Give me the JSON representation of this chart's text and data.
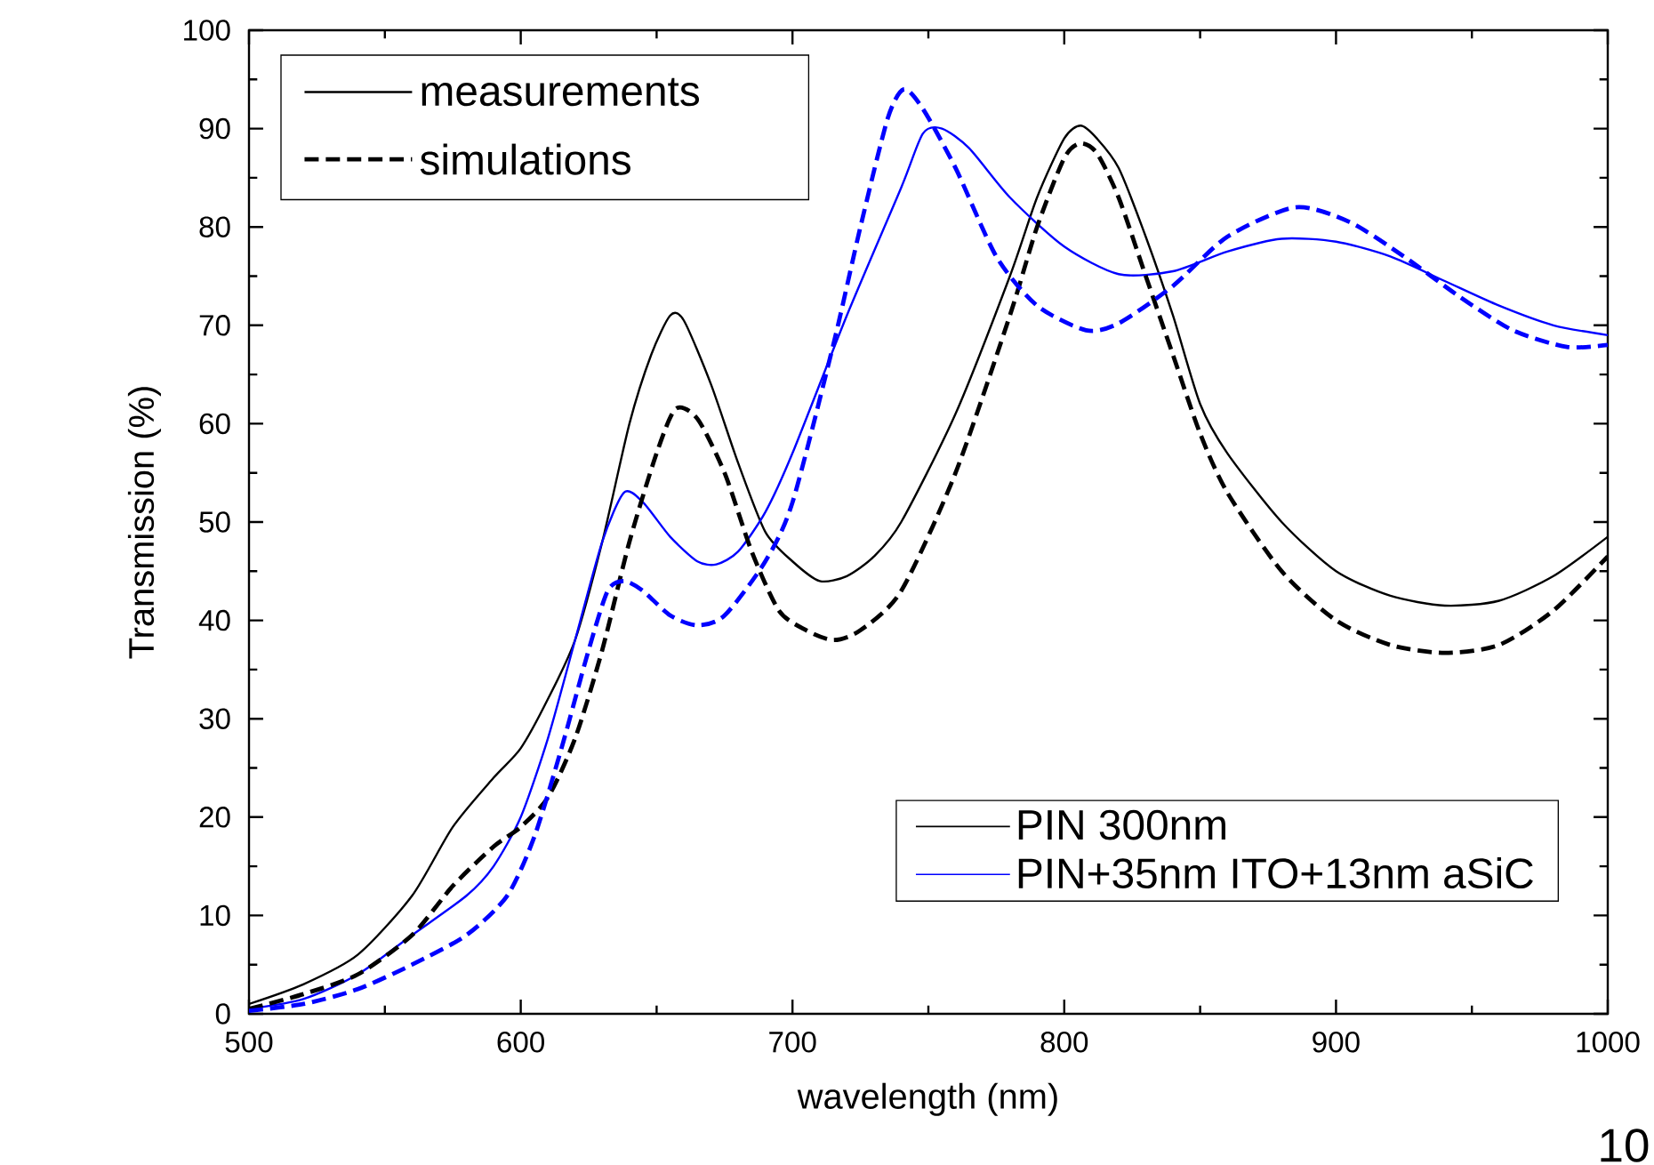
{
  "chart_data": {
    "type": "line",
    "xlabel": "wavelength (nm)",
    "ylabel": "Transmission (%)",
    "xlim": [
      500,
      1000
    ],
    "ylim": [
      0,
      100
    ],
    "xticks": [
      500,
      600,
      700,
      800,
      900,
      1000
    ],
    "yticks": [
      0,
      10,
      20,
      30,
      40,
      50,
      60,
      70,
      80,
      90,
      100
    ],
    "legend": "bottom right",
    "grid": false,
    "marker": "none",
    "annotations": [
      "measurements",
      "simulations",
      "10"
    ],
    "series": [
      {
        "name": "PIN 300nm",
        "color": "#000000",
        "line_style": "solid",
        "x": [
          500,
          520,
          540,
          560,
          575,
          590,
          600,
          610,
          620,
          630,
          640,
          648,
          655,
          660,
          670,
          680,
          690,
          700,
          710,
          720,
          730,
          740,
          760,
          780,
          790,
          800,
          806,
          812,
          820,
          830,
          840,
          850,
          860,
          880,
          900,
          920,
          940,
          960,
          980,
          1000
        ],
        "values": [
          1,
          3,
          6,
          12,
          19,
          24,
          27,
          32,
          38,
          48,
          60,
          67,
          71,
          70.5,
          64,
          56,
          49,
          46,
          44,
          44.5,
          46.5,
          50,
          61,
          75,
          83,
          89,
          90.3,
          89,
          86,
          79,
          71,
          62,
          57,
          50,
          45,
          42.5,
          41.5,
          42,
          44.5,
          48.5
        ]
      },
      {
        "name": "PIN+35nm ITO+13nm aSiC",
        "color": "#0000ff",
        "line_style": "solid",
        "x": [
          500,
          520,
          540,
          560,
          580,
          590,
          600,
          610,
          620,
          630,
          638,
          645,
          655,
          665,
          672,
          680,
          690,
          700,
          720,
          740,
          748,
          755,
          765,
          780,
          800,
          820,
          840,
          860,
          880,
          900,
          920,
          940,
          960,
          980,
          1000
        ],
        "values": [
          0.5,
          1.5,
          4,
          8,
          12,
          15,
          20,
          28,
          38,
          48,
          53,
          52,
          48.5,
          46,
          45.7,
          47,
          51,
          57,
          71,
          84,
          89.5,
          90,
          88,
          83,
          78,
          75.2,
          75.5,
          77.5,
          78.8,
          78.5,
          77,
          74.5,
          72,
          70,
          69
        ]
      },
      {
        "color": "#000000",
        "line_style": "dashed",
        "x": [
          500,
          520,
          540,
          560,
          575,
          590,
          600,
          610,
          620,
          630,
          640,
          650,
          657,
          665,
          675,
          685,
          695,
          705,
          715,
          725,
          740,
          760,
          780,
          790,
          800,
          806,
          812,
          820,
          830,
          840,
          850,
          860,
          880,
          900,
          920,
          940,
          960,
          980,
          1000
        ],
        "values": [
          0.5,
          2,
          4,
          8,
          13,
          17,
          19,
          22,
          28,
          37,
          48,
          57,
          61.5,
          60.5,
          55,
          47,
          41,
          39,
          38,
          39,
          43,
          55,
          71,
          80,
          87,
          88.5,
          87.5,
          83,
          75,
          67,
          59,
          53,
          45,
          40,
          37.5,
          36.7,
          37.5,
          41,
          46.5
        ]
      },
      {
        "color": "#0000ff",
        "line_style": "dashed",
        "x": [
          500,
          520,
          540,
          560,
          580,
          595,
          605,
          615,
          625,
          632,
          638,
          645,
          655,
          665,
          675,
          690,
          700,
          715,
          725,
          735,
          741,
          748,
          760,
          775,
          790,
          808,
          820,
          840,
          860,
          885,
          905,
          925,
          945,
          965,
          985,
          1000
        ],
        "values": [
          0.3,
          1,
          2.5,
          5,
          8,
          12,
          18,
          27,
          37,
          43,
          44,
          43,
          40.5,
          39.5,
          40.5,
          46,
          52,
          68,
          80,
          91,
          94,
          92,
          86,
          77,
          72,
          69.5,
          70.2,
          74,
          79,
          82,
          80.5,
          77,
          73,
          69.5,
          67.8,
          68
        ]
      }
    ]
  }
}
